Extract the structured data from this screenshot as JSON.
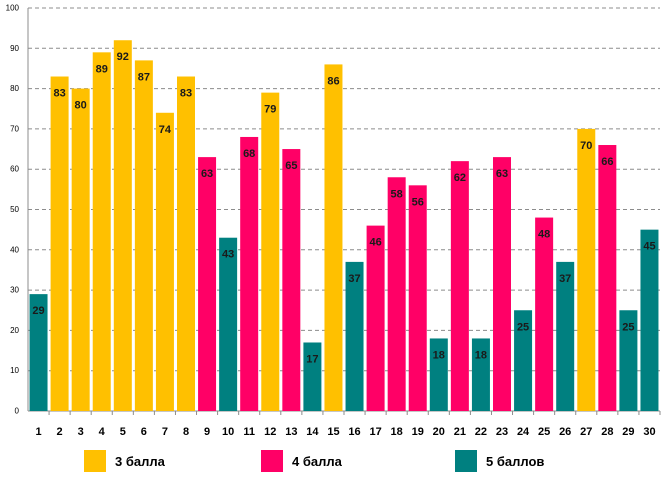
{
  "chart_data": {
    "type": "bar",
    "title": "",
    "xlabel": "",
    "ylabel": "",
    "ylim": [
      0,
      100
    ],
    "yticks": [
      0,
      10,
      20,
      30,
      40,
      50,
      60,
      70,
      80,
      90,
      100
    ],
    "grid": true,
    "categories": [
      "1",
      "2",
      "3",
      "4",
      "5",
      "6",
      "7",
      "8",
      "9",
      "10",
      "11",
      "12",
      "13",
      "14",
      "15",
      "16",
      "17",
      "18",
      "19",
      "20",
      "21",
      "22",
      "23",
      "24",
      "25",
      "26",
      "27",
      "28",
      "29",
      "30"
    ],
    "values": [
      29,
      83,
      80,
      89,
      92,
      87,
      74,
      83,
      63,
      43,
      68,
      79,
      65,
      17,
      86,
      37,
      46,
      58,
      56,
      18,
      62,
      18,
      63,
      25,
      48,
      37,
      70,
      66,
      25,
      45
    ],
    "value_labels": [
      "29",
      "83",
      "80",
      "89",
      "92",
      "87",
      "74",
      "83",
      "63",
      "43",
      "68",
      "79",
      "65",
      "17",
      "86",
      "37",
      "46",
      "58",
      "56",
      "18",
      "62",
      "18",
      "63",
      "25",
      "48",
      "37",
      "70",
      "66",
      "25",
      "45"
    ],
    "bar_groups": [
      "g5",
      "g3",
      "g3",
      "g3",
      "g3",
      "g3",
      "g3",
      "g3",
      "g4",
      "g5",
      "g4",
      "g3",
      "g4",
      "g5",
      "g3",
      "g5",
      "g4",
      "g4",
      "g4",
      "g5",
      "g4",
      "g5",
      "g4",
      "g5",
      "g4",
      "g5",
      "g3",
      "g4",
      "g5",
      "g5"
    ],
    "groups": {
      "g3": {
        "name": "3 балла",
        "color": "#FFC000"
      },
      "g4": {
        "name": "4 балла",
        "color": "#FF0066"
      },
      "g5": {
        "name": "5 баллов",
        "color": "#008080"
      }
    },
    "legend": [
      "3 балла",
      "4 балла",
      "5 баллов"
    ],
    "legend_position": "bottom"
  },
  "colors": {
    "g3": "#FFC000",
    "g4": "#FF0066",
    "g5": "#008080"
  }
}
